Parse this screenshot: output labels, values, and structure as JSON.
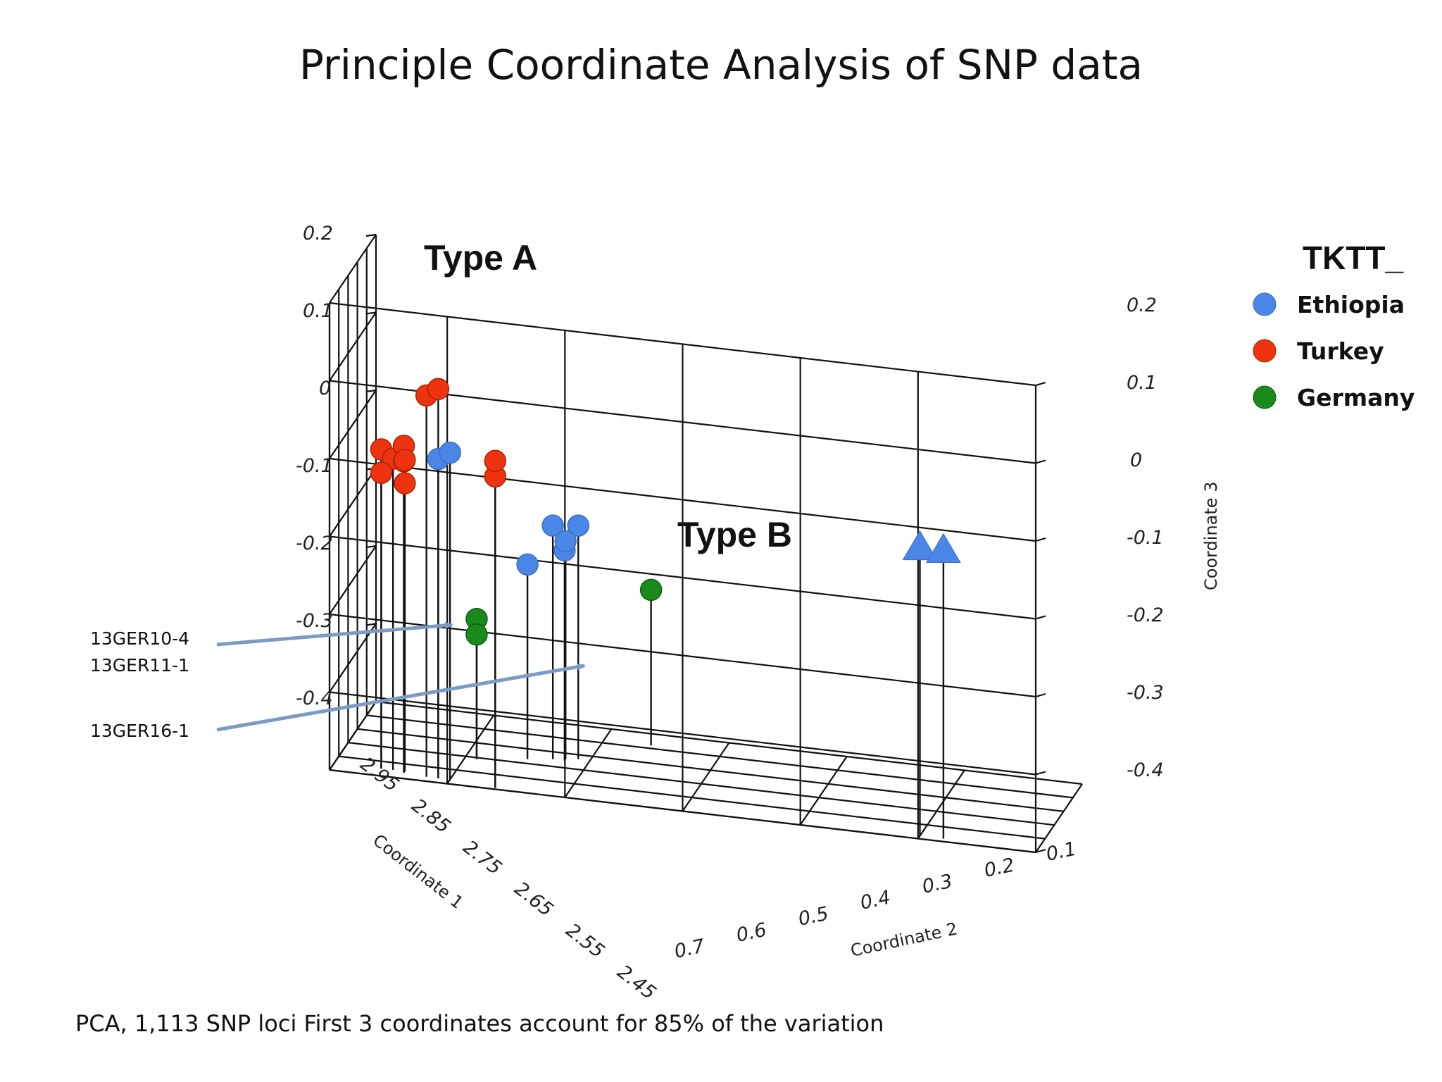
{
  "title": "Principle Coordinate Analysis of SNP data",
  "footnote": "PCA, 1,113 SNP loci First 3 coordinates account for 85% of the variation",
  "colors": {
    "Ethiopia": "#4a86e8",
    "Turkey": "#ee3311",
    "Germany": "#1a8a1a",
    "arrow": "#7a9cc4"
  },
  "chart_data": {
    "type": "scatter",
    "projection": "3d",
    "title": "Principle Coordinate Analysis of SNP data",
    "x_axis": {
      "label": "Coordinate 1",
      "ticks": [
        "2.95",
        "2.85",
        "2.75",
        "2.65",
        "2.55",
        "2.45"
      ],
      "range": [
        2.45,
        2.95
      ]
    },
    "y_axis": {
      "label": "Coordinate 2",
      "ticks": [
        "0.7",
        "0.6",
        "0.5",
        "0.4",
        "0.3",
        "0.2",
        "0.1"
      ],
      "range": [
        0.1,
        0.7
      ]
    },
    "z_axis": {
      "label": "Coordinate 3",
      "ticks": [
        "0.2",
        "0.1",
        "0",
        "-0.1",
        "-0.2",
        "-0.3",
        "-0.4"
      ],
      "range": [
        -0.4,
        0.2
      ]
    },
    "legend": {
      "title": "TKTT_",
      "position": "right",
      "entries": [
        "Ethiopia",
        "Turkey",
        "Germany"
      ]
    },
    "group_labels": [
      "Type A",
      "Type B"
    ],
    "annotations": [
      {
        "lines": [
          "13GER10-4",
          "13GER11-1"
        ]
      },
      {
        "lines": [
          "13GER16-1"
        ]
      }
    ],
    "series": [
      {
        "name": "Turkey",
        "marker": "circle",
        "points": [
          {
            "x": 2.92,
            "y": 0.62,
            "z": 0.09
          },
          {
            "x": 2.92,
            "y": 0.61,
            "z": 0.1
          },
          {
            "x": 2.9,
            "y": 0.66,
            "z": 0.01
          },
          {
            "x": 2.9,
            "y": 0.65,
            "z": 0.0
          },
          {
            "x": 2.9,
            "y": 0.66,
            "z": -0.02
          },
          {
            "x": 2.91,
            "y": 0.64,
            "z": 0.0
          },
          {
            "x": 2.91,
            "y": 0.64,
            "z": 0.02
          },
          {
            "x": 2.9,
            "y": 0.64,
            "z": 0.0
          },
          {
            "x": 2.9,
            "y": 0.64,
            "z": -0.03
          },
          {
            "x": 2.94,
            "y": 0.56,
            "z": 0.0
          },
          {
            "x": 2.94,
            "y": 0.56,
            "z": 0.02
          }
        ]
      },
      {
        "name": "Ethiopia",
        "marker": "circle",
        "points": [
          {
            "x": 2.92,
            "y": 0.61,
            "z": 0.01
          },
          {
            "x": 2.92,
            "y": 0.6,
            "z": 0.02
          },
          {
            "x": 2.7,
            "y": 0.53,
            "z": -0.1
          },
          {
            "x": 2.68,
            "y": 0.51,
            "z": -0.1
          },
          {
            "x": 2.7,
            "y": 0.52,
            "z": -0.13
          },
          {
            "x": 2.69,
            "y": 0.52,
            "z": -0.12
          },
          {
            "x": 2.72,
            "y": 0.55,
            "z": -0.15
          }
        ]
      },
      {
        "name": "Ethiopia",
        "marker": "triangle",
        "points": [
          {
            "x": 2.93,
            "y": 0.2,
            "z": -0.03
          },
          {
            "x": 2.93,
            "y": 0.18,
            "z": -0.03
          }
        ]
      },
      {
        "name": "Germany",
        "marker": "circle",
        "points": [
          {
            "x": 2.76,
            "y": 0.59,
            "z": -0.22
          },
          {
            "x": 2.76,
            "y": 0.59,
            "z": -0.24
          },
          {
            "x": 2.53,
            "y": 0.46,
            "z": -0.2
          }
        ]
      }
    ]
  }
}
